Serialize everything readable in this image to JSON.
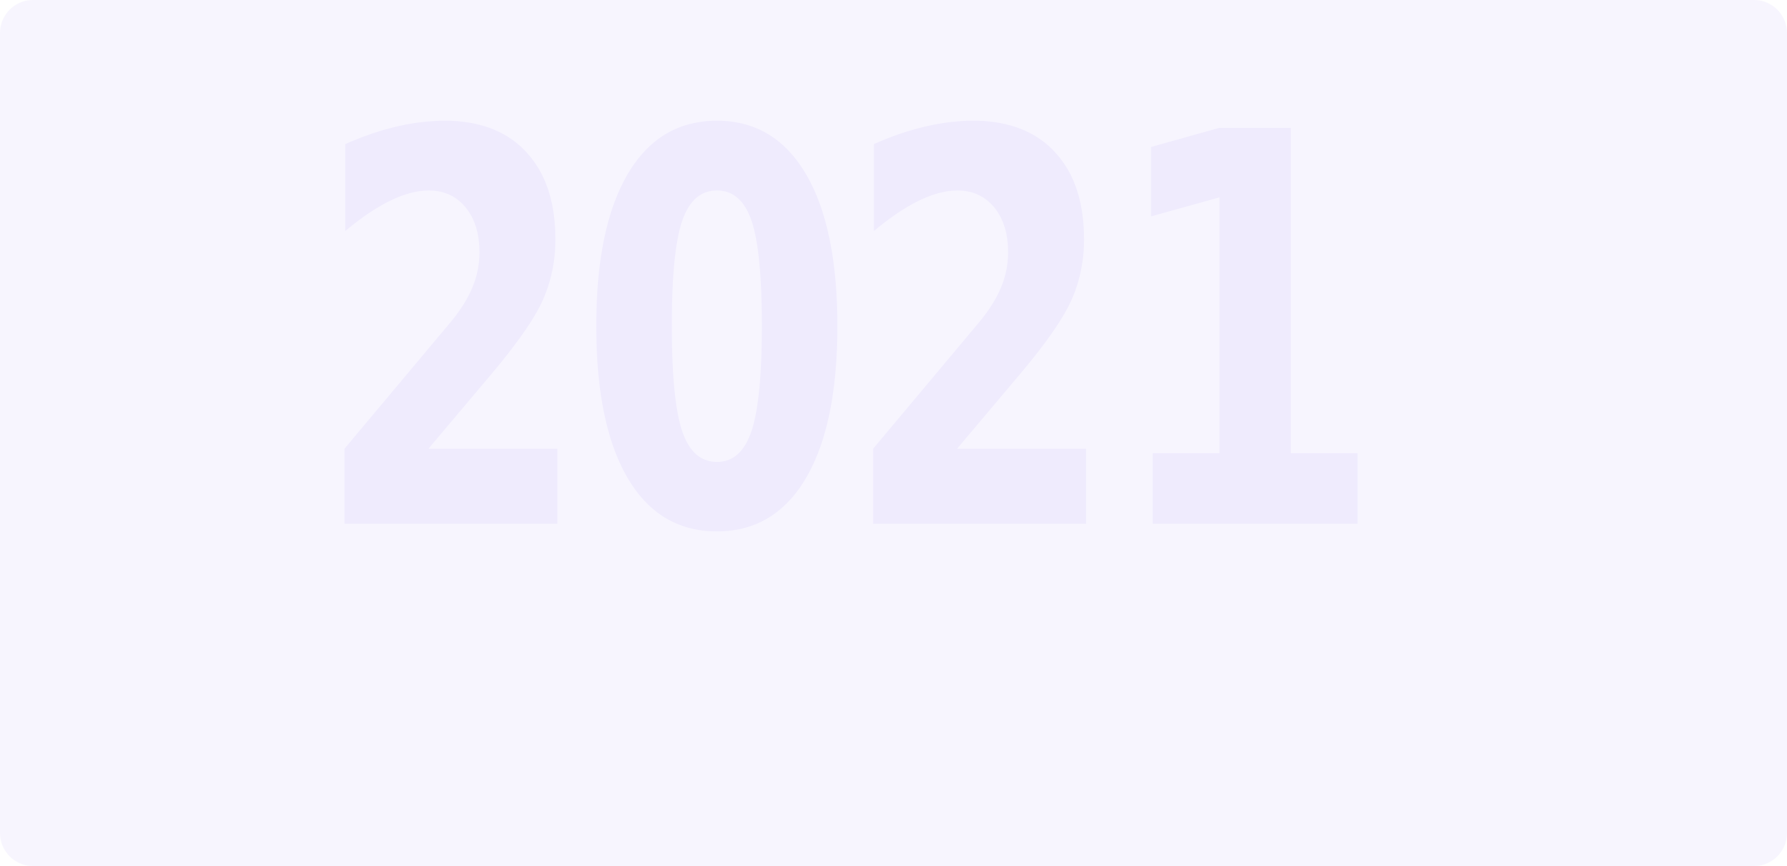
{
  "year_label": "2021",
  "colors": {
    "card_background": "#f7f5fe",
    "year_text": "#efebfd"
  }
}
